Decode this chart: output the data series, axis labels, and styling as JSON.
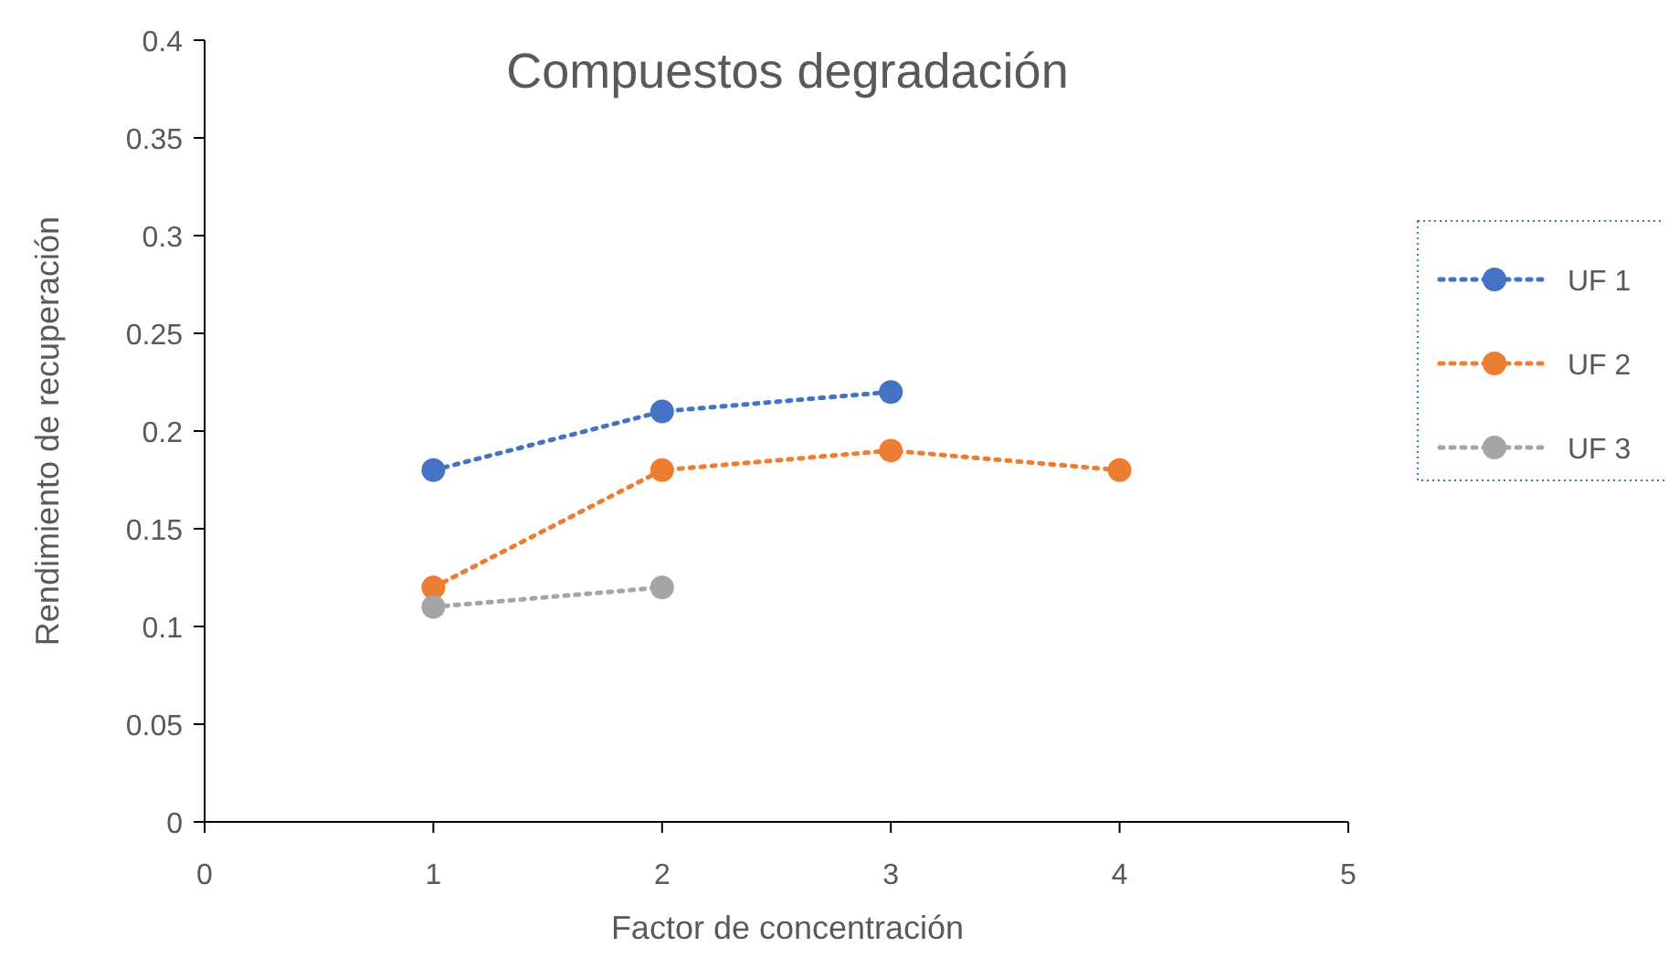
{
  "chart_data": {
    "type": "line",
    "title": "Compuestos degradación",
    "xlabel": "Factor de concentración",
    "ylabel": "Rendimiento de recuperación",
    "xlim": [
      0,
      5
    ],
    "xticks": [
      0,
      1,
      2,
      3,
      4,
      5
    ],
    "ylim": [
      0,
      0.4
    ],
    "yticks": [
      0,
      0.05,
      0.1,
      0.15,
      0.2,
      0.25,
      0.3,
      0.35,
      0.4
    ],
    "grid": false,
    "legend": "right",
    "marker": "circle",
    "line_style": "dotted",
    "series": [
      {
        "name": "UF 1",
        "color": "#4472c4",
        "x": [
          1,
          2,
          3
        ],
        "values": [
          0.18,
          0.21,
          0.22
        ]
      },
      {
        "name": "UF 2",
        "color": "#ed7d31",
        "x": [
          1,
          2,
          3,
          4
        ],
        "values": [
          0.12,
          0.18,
          0.19,
          0.18
        ]
      },
      {
        "name": "UF 3",
        "color": "#a5a5a5",
        "x": [
          1,
          2
        ],
        "values": [
          0.11,
          0.12
        ]
      }
    ]
  }
}
